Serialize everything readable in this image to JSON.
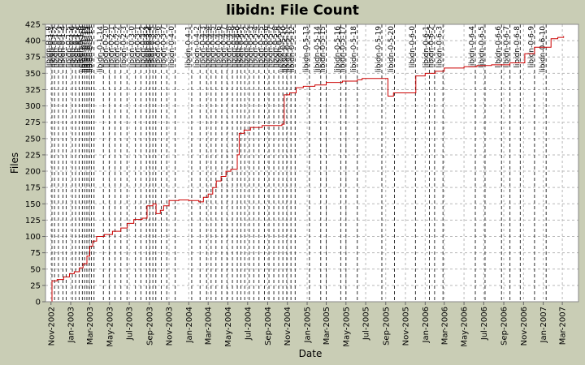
{
  "chart_data": {
    "type": "line",
    "title": "libidn: File Count",
    "xlabel": "Date",
    "ylabel": "Files",
    "ylim": [
      0,
      425
    ],
    "xlim": [
      "2002-10-15",
      "2007-04-20"
    ],
    "yticks": [
      0,
      25,
      50,
      75,
      100,
      125,
      150,
      175,
      200,
      225,
      250,
      275,
      300,
      325,
      350,
      375,
      400,
      425
    ],
    "xticks": [
      {
        "date": "2002-11-01",
        "label": "Nov-2002"
      },
      {
        "date": "2003-01-01",
        "label": "Jan-2003"
      },
      {
        "date": "2003-03-01",
        "label": "Mar-2003"
      },
      {
        "date": "2003-05-01",
        "label": "May-2003"
      },
      {
        "date": "2003-07-01",
        "label": "Jul-2003"
      },
      {
        "date": "2003-09-01",
        "label": "Sep-2003"
      },
      {
        "date": "2003-11-01",
        "label": "Nov-2003"
      },
      {
        "date": "2004-01-01",
        "label": "Jan-2004"
      },
      {
        "date": "2004-03-01",
        "label": "Mar-2004"
      },
      {
        "date": "2004-05-01",
        "label": "May-2004"
      },
      {
        "date": "2004-07-01",
        "label": "Jul-2004"
      },
      {
        "date": "2004-09-01",
        "label": "Sep-2004"
      },
      {
        "date": "2004-11-01",
        "label": "Nov-2004"
      },
      {
        "date": "2005-01-01",
        "label": "Jan-2005"
      },
      {
        "date": "2005-03-01",
        "label": "Mar-2005"
      },
      {
        "date": "2005-05-01",
        "label": "May-2005"
      },
      {
        "date": "2005-07-01",
        "label": "Jul-2005"
      },
      {
        "date": "2005-09-01",
        "label": "Sep-2005"
      },
      {
        "date": "2005-11-01",
        "label": "Nov-2005"
      },
      {
        "date": "2006-01-01",
        "label": "Jan-2006"
      },
      {
        "date": "2006-03-01",
        "label": "Mar-2006"
      },
      {
        "date": "2006-05-01",
        "label": "May-2006"
      },
      {
        "date": "2006-07-01",
        "label": "Jul-2006"
      },
      {
        "date": "2006-09-01",
        "label": "Sep-2006"
      },
      {
        "date": "2006-11-01",
        "label": "Nov-2006"
      },
      {
        "date": "2007-01-01",
        "label": "Jan-2007"
      },
      {
        "date": "2007-03-01",
        "label": "Mar-2007"
      }
    ],
    "grid": true,
    "line_color": "#cc0000",
    "marker_line_color": "#333333",
    "background": "#c9cdb5",
    "plot_background": "#ffffff",
    "series": [
      {
        "points": [
          [
            "2002-11-04",
            0
          ],
          [
            "2002-11-04",
            32
          ],
          [
            "2002-11-20",
            34
          ],
          [
            "2002-12-10",
            38
          ],
          [
            "2002-12-28",
            43
          ],
          [
            "2003-01-12",
            46
          ],
          [
            "2003-01-28",
            52
          ],
          [
            "2003-02-08",
            58
          ],
          [
            "2003-02-20",
            70
          ],
          [
            "2003-03-01",
            85
          ],
          [
            "2003-03-10",
            93
          ],
          [
            "2003-03-22",
            100
          ],
          [
            "2003-04-15",
            103
          ],
          [
            "2003-05-10",
            108
          ],
          [
            "2003-06-05",
            113
          ],
          [
            "2003-06-25",
            120
          ],
          [
            "2003-07-15",
            126
          ],
          [
            "2003-08-10",
            128
          ],
          [
            "2003-08-25",
            147
          ],
          [
            "2003-09-12",
            150
          ],
          [
            "2003-09-22",
            135
          ],
          [
            "2003-10-05",
            140
          ],
          [
            "2003-10-15",
            147
          ],
          [
            "2003-11-01",
            155
          ],
          [
            "2003-12-01",
            156
          ],
          [
            "2004-01-01",
            155
          ],
          [
            "2004-02-01",
            153
          ],
          [
            "2004-02-15",
            160
          ],
          [
            "2004-03-01",
            165
          ],
          [
            "2004-03-15",
            175
          ],
          [
            "2004-03-26",
            185
          ],
          [
            "2004-04-10",
            192
          ],
          [
            "2004-04-25",
            200
          ],
          [
            "2004-05-10",
            203
          ],
          [
            "2004-05-30",
            225
          ],
          [
            "2004-06-05",
            258
          ],
          [
            "2004-06-20",
            263
          ],
          [
            "2004-07-10",
            267
          ],
          [
            "2004-08-15",
            270
          ],
          [
            "2004-09-20",
            270
          ],
          [
            "2004-10-15",
            272
          ],
          [
            "2004-10-22",
            317
          ],
          [
            "2004-11-08",
            320
          ],
          [
            "2004-11-28",
            328
          ],
          [
            "2004-12-20",
            330
          ],
          [
            "2005-01-25",
            332
          ],
          [
            "2005-03-01",
            336
          ],
          [
            "2005-04-20",
            338
          ],
          [
            "2005-06-05",
            340
          ],
          [
            "2005-06-20",
            342
          ],
          [
            "2005-09-05",
            342
          ],
          [
            "2005-09-08",
            315
          ],
          [
            "2005-09-25",
            320
          ],
          [
            "2005-12-01",
            320
          ],
          [
            "2005-12-03",
            346
          ],
          [
            "2006-01-01",
            350
          ],
          [
            "2006-02-01",
            353
          ],
          [
            "2006-03-01",
            358
          ],
          [
            "2006-05-01",
            360
          ],
          [
            "2006-06-10",
            362
          ],
          [
            "2006-07-25",
            363
          ],
          [
            "2006-09-20",
            366
          ],
          [
            "2006-11-05",
            380
          ],
          [
            "2006-12-05",
            390
          ],
          [
            "2007-01-25",
            403
          ],
          [
            "2007-02-15",
            405
          ],
          [
            "2007-03-05",
            407
          ]
        ]
      }
    ],
    "release_markers": [
      {
        "date": "2002-11-04",
        "label": "libidn-0-1-0"
      },
      {
        "date": "2002-11-12",
        "label": "libidn-0-1-1"
      },
      {
        "date": "2002-11-24",
        "label": "libidn-0-1-2"
      },
      {
        "date": "2002-12-08",
        "label": "libidn-0-1-3"
      },
      {
        "date": "2002-12-18",
        "label": "libidn-0-1-4"
      },
      {
        "date": "2003-01-06",
        "label": "libidn-0-1-5"
      },
      {
        "date": "2003-01-16",
        "label": "libidn-0-1-6"
      },
      {
        "date": "2003-01-27",
        "label": "libidn-0-1-7"
      },
      {
        "date": "2003-02-06",
        "label": "libidn-0-1-8"
      },
      {
        "date": "2003-02-13",
        "label": "libidn-0-1-9"
      },
      {
        "date": "2003-02-20",
        "label": "libidn-0-1-10"
      },
      {
        "date": "2003-02-27",
        "label": "libidn-0-1-11"
      },
      {
        "date": "2003-03-06",
        "label": "libidn-0-1-12"
      },
      {
        "date": "2003-03-14",
        "label": "libidn-0-1-13"
      },
      {
        "date": "2003-04-12",
        "label": "libidn-0-1-14"
      },
      {
        "date": "2003-04-30",
        "label": "libidn-0-2-0"
      },
      {
        "date": "2003-05-18",
        "label": "libidn-0-2-1"
      },
      {
        "date": "2003-06-05",
        "label": "libidn-0-2-2"
      },
      {
        "date": "2003-06-24",
        "label": "libidn-0-2-3"
      },
      {
        "date": "2003-07-20",
        "label": "libidn-0-3-0"
      },
      {
        "date": "2003-08-06",
        "label": "libidn-0-3-1"
      },
      {
        "date": "2003-08-23",
        "label": "libidn-0-3-2"
      },
      {
        "date": "2003-09-03",
        "label": "libidn-0-3-3"
      },
      {
        "date": "2003-09-12",
        "label": "libidn-0-3-4"
      },
      {
        "date": "2003-09-21",
        "label": "libidn-0-3-5"
      },
      {
        "date": "2003-10-08",
        "label": "libidn-0-3-6"
      },
      {
        "date": "2003-10-25",
        "label": "libidn-0-3-7"
      },
      {
        "date": "2003-11-20",
        "label": "libidn-0-4-0"
      },
      {
        "date": "2004-01-10",
        "label": "libidn-0-4-1"
      },
      {
        "date": "2004-02-05",
        "label": "libidn-0-4-2"
      },
      {
        "date": "2004-02-25",
        "label": "libidn-0-4-3"
      },
      {
        "date": "2004-03-10",
        "label": "libidn-0-4-4"
      },
      {
        "date": "2004-03-25",
        "label": "libidn-0-4-5"
      },
      {
        "date": "2004-04-12",
        "label": "libidn-0-4-6"
      },
      {
        "date": "2004-04-28",
        "label": "libidn-0-4-7"
      },
      {
        "date": "2004-05-15",
        "label": "libidn-0-4-8"
      },
      {
        "date": "2004-05-30",
        "label": "libidn-0-4-9"
      },
      {
        "date": "2004-06-10",
        "label": "libidn-0-5-0"
      },
      {
        "date": "2004-06-22",
        "label": "libidn-0-5-1"
      },
      {
        "date": "2004-07-06",
        "label": "libidn-0-5-2"
      },
      {
        "date": "2004-07-20",
        "label": "libidn-0-5-3"
      },
      {
        "date": "2004-08-05",
        "label": "libidn-0-5-4"
      },
      {
        "date": "2004-08-22",
        "label": "libidn-0-5-5"
      },
      {
        "date": "2004-09-05",
        "label": "libidn-0-5-6"
      },
      {
        "date": "2004-09-20",
        "label": "libidn-0-5-7"
      },
      {
        "date": "2004-10-05",
        "label": "libidn-0-5-8"
      },
      {
        "date": "2004-10-18",
        "label": "libidn-0-5-9"
      },
      {
        "date": "2004-10-30",
        "label": "libidn-0-5-10"
      },
      {
        "date": "2004-11-12",
        "label": "libidn-0-5-11"
      },
      {
        "date": "2004-11-25",
        "label": "libidn-0-5-12"
      },
      {
        "date": "2005-01-08",
        "label": "libidn-0-5-13"
      },
      {
        "date": "2005-02-12",
        "label": "libidn-0-5-14"
      },
      {
        "date": "2005-03-01",
        "label": "libidn-0-5-15"
      },
      {
        "date": "2005-04-15",
        "label": "libidn-0-5-16"
      },
      {
        "date": "2005-05-01",
        "label": "libidn-0-5-17"
      },
      {
        "date": "2005-06-05",
        "label": "libidn-0-5-18"
      },
      {
        "date": "2005-08-20",
        "label": "libidn-0-5-19"
      },
      {
        "date": "2005-09-28",
        "label": "libidn-0-5-20"
      },
      {
        "date": "2005-12-02",
        "label": "libidn-0-6-0"
      },
      {
        "date": "2006-01-14",
        "label": "libidn-0-6-1"
      },
      {
        "date": "2006-01-30",
        "label": "libidn-0-6-2"
      },
      {
        "date": "2006-02-25",
        "label": "libidn-0-6-3"
      },
      {
        "date": "2006-06-05",
        "label": "libidn-0-6-4"
      },
      {
        "date": "2006-07-05",
        "label": "libidn-0-6-5"
      },
      {
        "date": "2006-08-25",
        "label": "libidn-0-6-6"
      },
      {
        "date": "2006-09-20",
        "label": "libidn-0-6-7"
      },
      {
        "date": "2006-10-22",
        "label": "libidn-0-6-8"
      },
      {
        "date": "2006-12-05",
        "label": "libidn-0-6-9"
      },
      {
        "date": "2007-01-10",
        "label": "libidn-0-6-10"
      }
    ]
  }
}
